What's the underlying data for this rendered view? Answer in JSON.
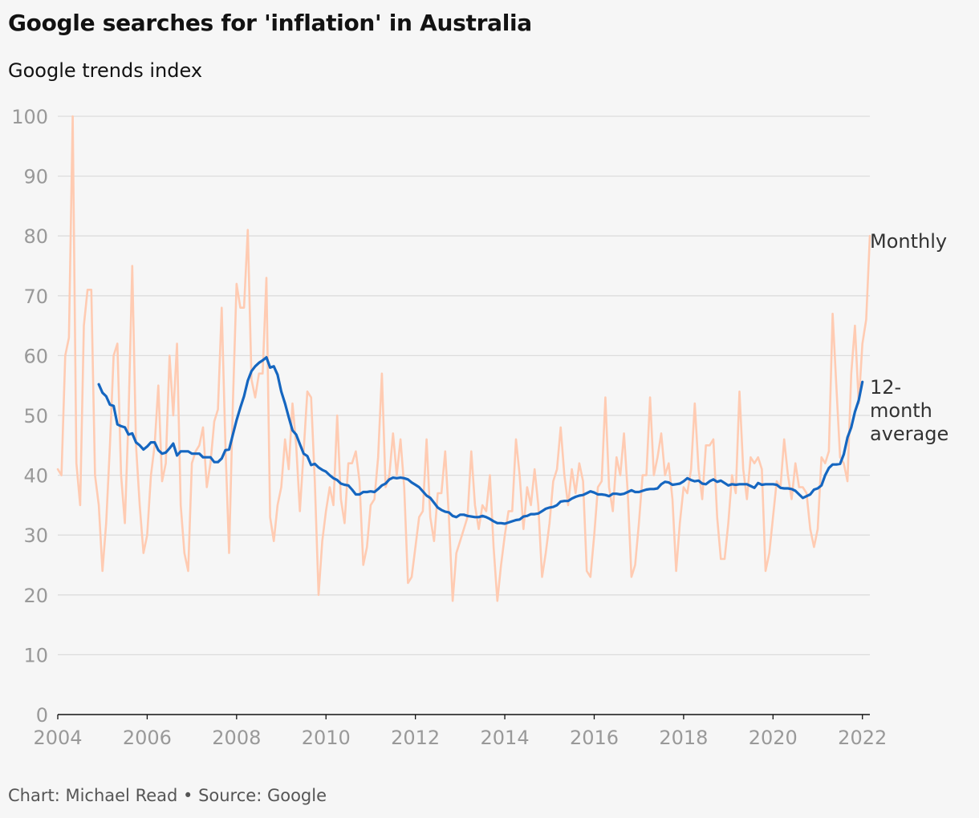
{
  "title": "Google searches for 'inflation' in Australia",
  "subtitle": "Google trends index",
  "footer": "Chart: Michael Read • Source: Google",
  "colors": {
    "monthly": "#ffcbb2",
    "average": "#1566c0",
    "grid": "#dcdcdc",
    "axis": "#121212"
  },
  "chart_data": {
    "type": "line",
    "title": "Google searches for 'inflation' in Australia",
    "ylabel": "Google trends index",
    "xlabel": "",
    "ylim": [
      0,
      100
    ],
    "xlim": [
      "2004-01",
      "2022-03"
    ],
    "yticks": [
      0,
      10,
      20,
      30,
      40,
      50,
      60,
      70,
      80,
      90,
      100
    ],
    "xticks": [
      "2004",
      "2006",
      "2008",
      "2010",
      "2012",
      "2014",
      "2016",
      "2018",
      "2020",
      "2022"
    ],
    "grid": true,
    "series_labels": {
      "monthly": "Monthly",
      "average": [
        "12-",
        "month",
        "average"
      ]
    },
    "series": [
      {
        "name": "Monthly",
        "start": "2004-01",
        "values": [
          41,
          40,
          60,
          63,
          100,
          42,
          35,
          65,
          71,
          71,
          40,
          35,
          24,
          32,
          45,
          60,
          62,
          40,
          32,
          50,
          75,
          45,
          35,
          27,
          30,
          40,
          45,
          55,
          39,
          42,
          60,
          50,
          62,
          35,
          27,
          24,
          42,
          44,
          45,
          48,
          38,
          42,
          49,
          51,
          68,
          45,
          27,
          52,
          72,
          68,
          68,
          81,
          56,
          53,
          57,
          57,
          73,
          33,
          29,
          35,
          38,
          46,
          41,
          52,
          45,
          34,
          44,
          54,
          53,
          39,
          20,
          29,
          34,
          38,
          35,
          50,
          36,
          32,
          42,
          42,
          44,
          39,
          25,
          28,
          35,
          36,
          43,
          57,
          38,
          40,
          47,
          40,
          46,
          38,
          22,
          23,
          28,
          33,
          34,
          46,
          33,
          29,
          37,
          37,
          44,
          33,
          19,
          27,
          29,
          31,
          33,
          44,
          35,
          31,
          35,
          34,
          40,
          28,
          19,
          25,
          30,
          34,
          34,
          46,
          40,
          31,
          38,
          35,
          41,
          35,
          23,
          27,
          32,
          39,
          41,
          48,
          40,
          35,
          41,
          37,
          42,
          39,
          24,
          23,
          30,
          38,
          39,
          53,
          38,
          34,
          43,
          40,
          47,
          37,
          23,
          25,
          32,
          40,
          40,
          53,
          40,
          43,
          47,
          40,
          42,
          36,
          24,
          32,
          38,
          37,
          41,
          52,
          41,
          36,
          45,
          45,
          46,
          33,
          26,
          26,
          32,
          40,
          37,
          54,
          41,
          36,
          43,
          42,
          43,
          41,
          24,
          27,
          33,
          39,
          38,
          46,
          40,
          36,
          42,
          38,
          38,
          37,
          31,
          28,
          31,
          43,
          42,
          44,
          67,
          55,
          43,
          42,
          39,
          57,
          65,
          52,
          62,
          66,
          80
        ]
      },
      {
        "name": "12-month average",
        "start": "2004-12",
        "values": [
          55.2,
          53.8,
          53.2,
          51.8,
          51.6,
          48.5,
          48.2,
          48.0,
          46.8,
          47.0,
          45.5,
          45.0,
          44.3,
          44.8,
          45.5,
          45.5,
          44.2,
          43.6,
          43.8,
          44.5,
          45.3,
          43.3,
          44.0,
          44.0,
          44.0,
          43.6,
          43.6,
          43.6,
          43.0,
          43.0,
          43.0,
          42.2,
          42.2,
          42.8,
          44.2,
          44.3,
          46.8,
          49.2,
          51.3,
          53.2,
          55.8,
          57.4,
          58.2,
          58.8,
          59.2,
          59.7,
          58.0,
          58.2,
          56.8,
          54.0,
          52.0,
          49.7,
          47.5,
          46.8,
          45.2,
          43.6,
          43.2,
          41.7,
          41.9,
          41.3,
          40.9,
          40.6,
          40.0,
          39.5,
          39.2,
          38.6,
          38.4,
          38.3,
          37.6,
          36.8,
          36.8,
          37.2,
          37.2,
          37.3,
          37.2,
          37.7,
          38.3,
          38.6,
          39.3,
          39.6,
          39.5,
          39.6,
          39.5,
          39.3,
          38.8,
          38.4,
          38.0,
          37.3,
          36.6,
          36.2,
          35.4,
          34.6,
          34.2,
          33.9,
          33.8,
          33.2,
          33.0,
          33.4,
          33.4,
          33.2,
          33.1,
          33.0,
          33.0,
          33.2,
          33.0,
          32.7,
          32.3,
          32.0,
          32.0,
          31.9,
          32.1,
          32.3,
          32.5,
          32.6,
          33.1,
          33.2,
          33.5,
          33.5,
          33.6,
          34.0,
          34.4,
          34.6,
          34.7,
          35.0,
          35.6,
          35.7,
          35.7,
          36.1,
          36.4,
          36.6,
          36.7,
          37.0,
          37.3,
          37.1,
          36.8,
          36.8,
          36.7,
          36.5,
          36.9,
          36.9,
          36.8,
          36.9,
          37.2,
          37.5,
          37.2,
          37.2,
          37.4,
          37.6,
          37.7,
          37.7,
          37.8,
          38.5,
          38.9,
          38.8,
          38.4,
          38.5,
          38.6,
          39.0,
          39.5,
          39.2,
          39.0,
          39.1,
          38.6,
          38.5,
          39.0,
          39.3,
          38.9,
          39.1,
          38.7,
          38.3,
          38.5,
          38.4,
          38.5,
          38.5,
          38.5,
          38.2,
          37.9,
          38.7,
          38.4,
          38.5,
          38.5,
          38.5,
          38.4,
          37.9,
          37.8,
          37.8,
          37.7,
          37.4,
          36.8,
          36.2,
          36.5,
          36.8,
          37.6,
          37.8,
          38.3,
          40.0,
          41.2,
          41.8,
          41.8,
          41.9,
          43.5,
          46.3,
          48.0,
          50.6,
          52.5,
          55.6
        ]
      }
    ]
  }
}
